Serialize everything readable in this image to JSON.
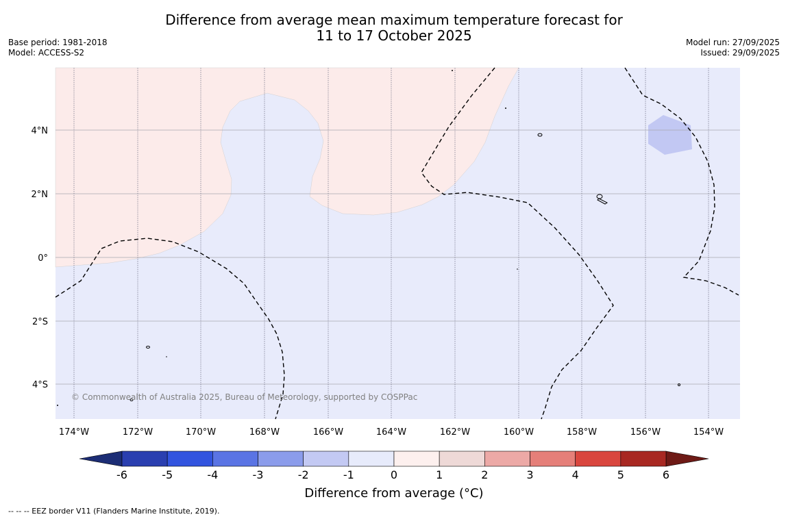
{
  "title": {
    "line1": "Difference from average mean maximum temperature forecast for",
    "line2": "11 to 17 October 2025"
  },
  "meta_left": {
    "base_period": "Base period: 1981-2018",
    "model": "Model: ACCESS-S2"
  },
  "meta_right": {
    "model_run": "Model run: 27/09/2025",
    "issued": "Issued: 29/09/2025"
  },
  "map": {
    "lat_labels": [
      "4°N",
      "2°N",
      "0°",
      "2°S",
      "4°S"
    ],
    "lon_labels": [
      "174°W",
      "172°W",
      "170°W",
      "168°W",
      "166°W",
      "164°W",
      "162°W",
      "160°W",
      "158°W",
      "156°W",
      "154°W"
    ],
    "copyright": "© Commonwealth of Australia 2025, Bureau of Meteorology, supported by COSPPac"
  },
  "colorbar": {
    "ticks": [
      "-6",
      "-5",
      "-4",
      "-3",
      "-2",
      "-1",
      "0",
      "1",
      "2",
      "3",
      "4",
      "5",
      "6"
    ],
    "colors": [
      "#2a3fb0",
      "#3254df",
      "#5a74e4",
      "#8b9ceb",
      "#c3c9f3",
      "#e7ebfb",
      "#fdf0ee",
      "#eed9d7",
      "#eca9a6",
      "#e57f79",
      "#d9463e",
      "#a82822"
    ],
    "under_color": "#1c2d75",
    "over_color": "#6e1a16",
    "label": "Difference from average (°C)"
  },
  "footnote": "-- -- -- EEZ border V11 (Flanders Marine Institute, 2019)."
}
